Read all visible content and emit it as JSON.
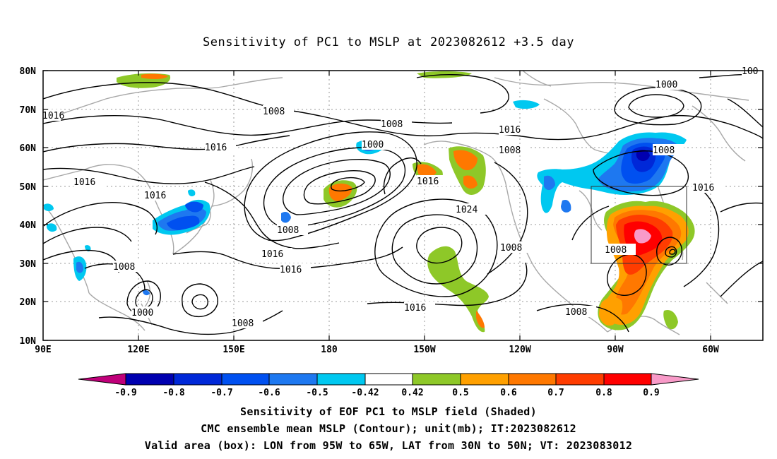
{
  "title": "Sensitivity of PC1 to MSLP at 2023082612 +3.5 day",
  "map": {
    "lat_labels": [
      "80N",
      "70N",
      "60N",
      "50N",
      "40N",
      "30N",
      "20N",
      "10N"
    ],
    "lon_labels": [
      "90E",
      "120E",
      "150E",
      "180",
      "150W",
      "120W",
      "90W",
      "60W"
    ],
    "valid_box": {
      "lon": [
        "95W",
        "65W"
      ],
      "lat": [
        "30N",
        "50N"
      ]
    }
  },
  "contours": {
    "unit": "mb",
    "labels": [
      "1016",
      "1008",
      "1008",
      "1016",
      "1000",
      "1008",
      "1000",
      "1008",
      "1016",
      "1016",
      "1008",
      "1016",
      "1016",
      "1016",
      "1024",
      "1016",
      "1008",
      "1000",
      "1008",
      "1016",
      "1008",
      "1008",
      "1008",
      "1000",
      "1008",
      "1016",
      "100"
    ]
  },
  "colorbar": {
    "tick_labels": [
      "-0.9",
      "-0.8",
      "-0.7",
      "-0.6",
      "-0.5",
      "-0.42",
      "0.42",
      "0.5",
      "0.6",
      "0.7",
      "0.8",
      "0.9"
    ],
    "colors": [
      "#c0007a",
      "#0000b0",
      "#0028d8",
      "#0050f0",
      "#1e78f0",
      "#00c8f0",
      "#ffffff",
      "#8ec828",
      "#ffa000",
      "#ff7800",
      "#ff3c00",
      "#ff0000",
      "#f89ac8"
    ]
  },
  "captions": {
    "line1": "Sensitivity of EOF PC1 to MSLP field (Shaded)",
    "line2": "CMC ensemble mean MSLP (Contour); unit(mb); IT:2023082612",
    "line3": "Valid area (box): LON from 95W to 65W, LAT from 30N to 50N; VT: 2023083012"
  }
}
